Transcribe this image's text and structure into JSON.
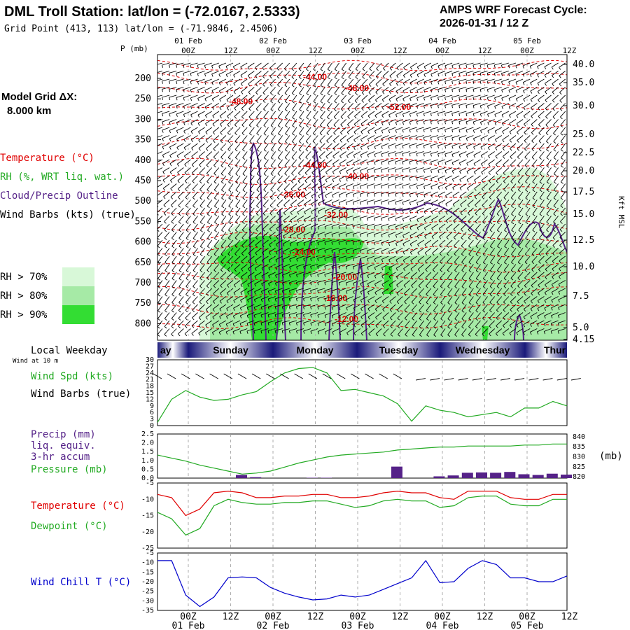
{
  "header": {
    "station_title": "DML Troll Station:  lat/lon = (-72.0167, 2.5333)",
    "grid_point": "Grid Point (413, 113) lat/lon = (-71.9846, 2.4506)",
    "cycle_line1": "AMPS WRF Forecast Cycle:",
    "cycle_line2": "2026-01-31 / 12  Z"
  },
  "model_grid": {
    "label": "Model Grid ΔX:",
    "value": "8.000 km"
  },
  "legend": {
    "temperature": "Temperature (°C)",
    "rh": "RH (%, WRT liq. wat.)",
    "cloud": "Cloud/Precip Outline",
    "wind": "Wind Barbs (kts) (true)",
    "rh70": "RH > 70%",
    "rh80": "RH > 80%",
    "rh90": "RH > 90%"
  },
  "colors": {
    "temperature": "#e00000",
    "rh": "#22aa22",
    "cloud": "#552288",
    "rh70": "#d8f8d8",
    "rh80": "#a6eaa6",
    "rh90": "#33dd33",
    "windchill": "#0000cc",
    "precip": "#552288",
    "daybar_mid": "#ffffff",
    "daybar_edge": "#1a1a7a"
  },
  "time_axis": {
    "top_dates": [
      "01 Feb",
      "02 Feb",
      "03 Feb",
      "04 Feb",
      "05 Feb"
    ],
    "hours": [
      "00Z",
      "12Z",
      "00Z",
      "12Z",
      "00Z",
      "12Z",
      "00Z",
      "12Z",
      "00Z",
      "12Z"
    ],
    "bottom_hours": [
      "00Z",
      "12Z",
      "00Z",
      "12Z",
      "00Z",
      "12Z",
      "00Z",
      "12Z",
      "00Z",
      "12Z"
    ],
    "bottom_dates": [
      "01 Feb",
      "02 Feb",
      "03 Feb",
      "04 Feb",
      "05 Feb"
    ],
    "weekday_label": "Local Weekday",
    "weekdays": [
      "ay",
      "Sunday",
      "Monday",
      "Tuesday",
      "Wednesday",
      "Thur"
    ]
  },
  "panel_labels": {
    "pressure_unit": "P (mb)",
    "height_unit": "Kft MSL",
    "wind10m": "Wind at 10 m",
    "wind_spd": "Wind Spd (kts)",
    "wind_barbs": "Wind Barbs (true)",
    "precip": "Precip (mm)",
    "liq": "liq. equiv.",
    "accum": "3-hr accum",
    "pressure": "Pressure (mb)",
    "mb": "(mb)",
    "temp": "Temperature (°C)",
    "dew": "Dewpoint (°C)",
    "windchill": "Wind Chill T (°C)"
  },
  "chart_data": [
    {
      "type": "heatmap",
      "panel": "time-height cross section",
      "y_axis_pressure_ticks": [
        "200",
        "250",
        "300",
        "350",
        "400",
        "450",
        "500",
        "550",
        "600",
        "650",
        "700",
        "750",
        "800"
      ],
      "y_axis_height_ticks": [
        "40.0",
        "35.0",
        "30.0",
        "25.0",
        "22.5",
        "20.0",
        "17.5",
        "15.0",
        "12.5",
        "10.0",
        "7.5",
        "5.0",
        "4.15"
      ],
      "temperature_contour_labels": [
        "-44.00",
        "-48.00",
        "-48.00",
        "-52.00",
        "-44.00",
        "-40.00",
        "-36.00",
        "-32.00",
        "-28.00",
        "-24.00",
        "-20.00",
        "-16.00",
        "-12.00"
      ]
    },
    {
      "type": "line",
      "panel": "wind speed",
      "ylabel": "Wind Spd (kts)",
      "y_ticks": [
        "30",
        "27",
        "24",
        "21",
        "18",
        "15",
        "12",
        "9",
        "6",
        "3",
        "0"
      ],
      "ylim": [
        0,
        30
      ],
      "series": [
        {
          "name": "Wind Spd (kts)",
          "color": "#22aa22",
          "values": [
            1.5,
            12,
            16,
            13,
            11.5,
            12,
            14,
            15.5,
            20,
            24,
            26,
            26.5,
            24,
            16,
            16.5,
            15,
            13.5,
            10,
            2,
            9,
            7,
            6,
            4,
            5,
            6,
            4,
            8,
            8,
            11,
            9
          ]
        }
      ]
    },
    {
      "type": "bar",
      "panel": "precip and pressure",
      "y_left_ticks": [
        "2.5",
        "2.0",
        "1.5",
        "1.0",
        "0.5",
        "0.0"
      ],
      "y_right_ticks": [
        "840",
        "835",
        "830",
        "825",
        "820"
      ],
      "precip_mm": [
        0,
        0,
        0,
        0,
        0,
        0,
        0.18,
        0.05,
        0,
        0,
        0,
        0.02,
        0.02,
        0,
        0,
        0,
        0,
        0.65,
        0,
        0,
        0.1,
        0.15,
        0.3,
        0.32,
        0.3,
        0.35,
        0.22,
        0.18,
        0.25,
        0.2
      ],
      "series": [
        {
          "name": "Pressure (mb)",
          "color": "#22aa22",
          "values": [
            830.5,
            829,
            827.5,
            825.5,
            824,
            822.5,
            821,
            821.5,
            822.5,
            824.5,
            826.5,
            828,
            829.5,
            830.5,
            831,
            831.5,
            832,
            833,
            833.5,
            834,
            834.5,
            834.5,
            835,
            835,
            835,
            835,
            835.5,
            835.5,
            836,
            836
          ]
        }
      ]
    },
    {
      "type": "line",
      "panel": "temperature and dewpoint",
      "y_ticks": [
        "-5",
        "-10",
        "-15",
        "-20",
        "-25"
      ],
      "ylim": [
        -25,
        -5
      ],
      "series": [
        {
          "name": "Temperature (°C)",
          "color": "#e00000",
          "values": [
            -8.5,
            -9.5,
            -15,
            -13,
            -8,
            -7.5,
            -8,
            -9.5,
            -9.5,
            -9,
            -9,
            -8.5,
            -8.5,
            -9.5,
            -9.5,
            -9,
            -8,
            -7.5,
            -8,
            -8,
            -9.5,
            -10,
            -7.5,
            -7.5,
            -7.5,
            -9.5,
            -10,
            -10,
            -8.5,
            -8.5
          ]
        },
        {
          "name": "Dewpoint (°C)",
          "color": "#22aa22",
          "values": [
            -14,
            -16,
            -21,
            -19,
            -12,
            -10,
            -11,
            -11.5,
            -11.5,
            -11,
            -11,
            -10.5,
            -10.5,
            -11.5,
            -12.5,
            -12,
            -10.5,
            -10,
            -10.5,
            -10.5,
            -12.5,
            -12,
            -9.5,
            -9,
            -9,
            -11.5,
            -12,
            -12,
            -10,
            -10
          ]
        }
      ]
    },
    {
      "type": "line",
      "panel": "wind chill",
      "y_ticks": [
        "-5",
        "-10",
        "-15",
        "-20",
        "-25",
        "-30",
        "-35"
      ],
      "ylim": [
        -35,
        -5
      ],
      "series": [
        {
          "name": "Wind Chill T (°C)",
          "color": "#0000cc",
          "values": [
            -9,
            -9,
            -27,
            -33,
            -28,
            -18,
            -17.5,
            -18,
            -23,
            -26,
            -28,
            -29.5,
            -29,
            -27,
            -28,
            -27,
            -24,
            -21,
            -18,
            -9,
            -20.5,
            -20,
            -13,
            -9,
            -11,
            -18,
            -18,
            -20,
            -20,
            -17
          ]
        }
      ]
    }
  ]
}
